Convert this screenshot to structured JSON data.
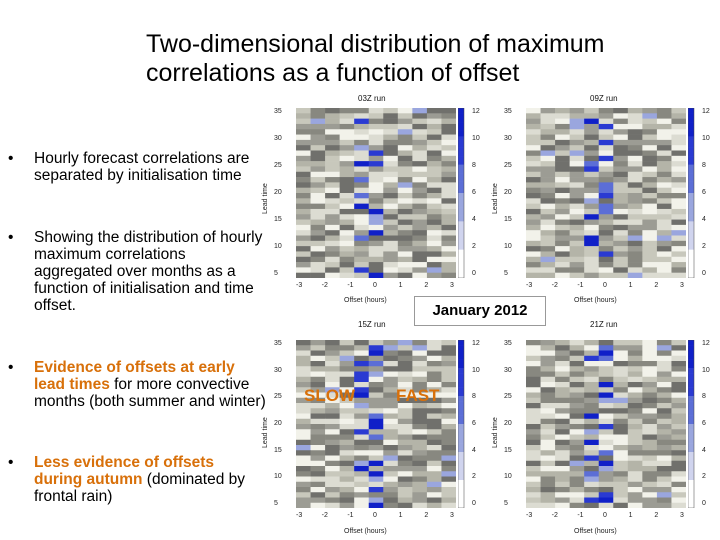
{
  "title": "Two-dimensional distribution of maximum correlations as a function of offset",
  "bullets": [
    {
      "dot": "•",
      "parts": [
        {
          "text": "Hourly forecast correlations are separated by initialisation time",
          "style": "plain"
        }
      ]
    },
    {
      "dot": "•",
      "parts": [
        {
          "text": "Showing the distribution of hourly maximum correlations aggregated over months as a function of initialisation and time offset.",
          "style": "plain"
        }
      ]
    },
    {
      "dot": "•",
      "parts": [
        {
          "text": "Evidence of offsets at early lead times",
          "style": "orange"
        },
        {
          "text": " for more convective months (both summer and winter)",
          "style": "plain"
        }
      ]
    },
    {
      "dot": "•",
      "parts": [
        {
          "text": "Less evidence of offsets during autumn",
          "style": "orange"
        },
        {
          "text": " (dominated by frontal rain)",
          "style": "plain"
        }
      ]
    }
  ],
  "plots": [
    {
      "title": "03Z run",
      "ylabel": "Lead time",
      "xlabel": "Offset (hours)",
      "yticks": [
        "35",
        "30",
        "25",
        "20",
        "15",
        "10",
        "5"
      ],
      "xticks": [
        "-3",
        "-2",
        "-1",
        "0",
        "1",
        "2",
        "3"
      ],
      "scale": [
        "12",
        "10",
        "8",
        "6",
        "4",
        "2",
        "0"
      ]
    },
    {
      "title": "09Z run",
      "ylabel": "Lead time",
      "xlabel": "Offset (hours)",
      "yticks": [
        "35",
        "30",
        "25",
        "20",
        "15",
        "10",
        "5"
      ],
      "xticks": [
        "-3",
        "-2",
        "-1",
        "0",
        "1",
        "2",
        "3"
      ],
      "scale": [
        "12",
        "10",
        "8",
        "6",
        "4",
        "2",
        "0"
      ]
    },
    {
      "title": "15Z run",
      "ylabel": "Lead time",
      "xlabel": "Offset (hours)",
      "yticks": [
        "35",
        "30",
        "25",
        "20",
        "15",
        "10",
        "5"
      ],
      "xticks": [
        "-3",
        "-2",
        "-1",
        "0",
        "1",
        "2",
        "3"
      ],
      "scale": [
        "12",
        "10",
        "8",
        "6",
        "4",
        "2",
        "0"
      ]
    },
    {
      "title": "21Z run",
      "ylabel": "Lead time",
      "xlabel": "Offset (hours)",
      "yticks": [
        "35",
        "30",
        "25",
        "20",
        "15",
        "10",
        "5"
      ],
      "xticks": [
        "-3",
        "-2",
        "-1",
        "0",
        "1",
        "2",
        "3"
      ],
      "scale": [
        "12",
        "10",
        "8",
        "6",
        "4",
        "2",
        "0"
      ]
    }
  ],
  "month_label": "January 2012",
  "slow_label": "SLOW",
  "fast_label": "FAST"
}
